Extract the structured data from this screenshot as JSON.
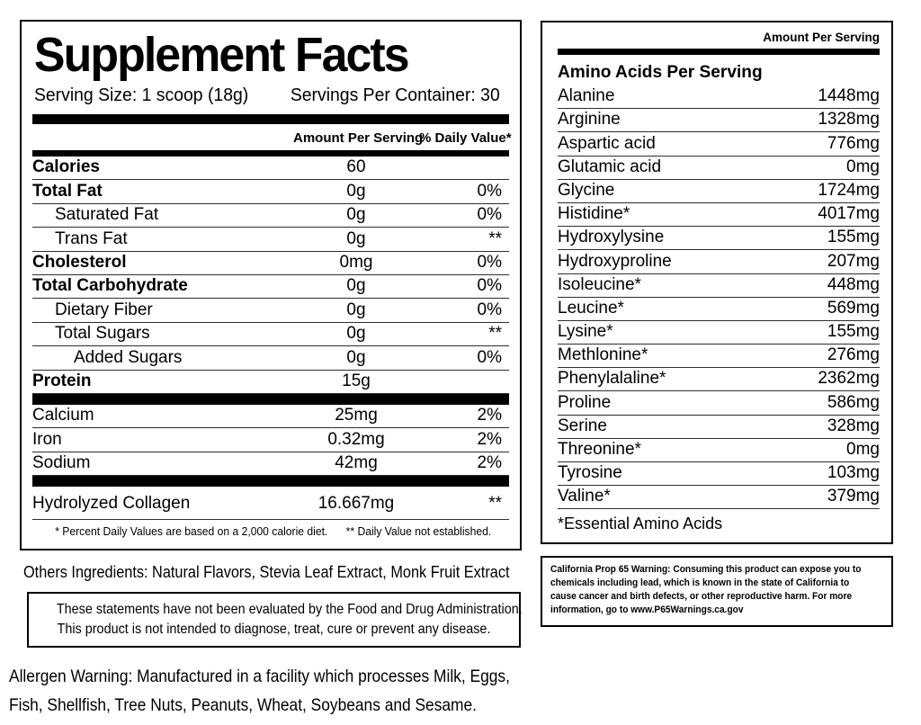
{
  "left_panel": {
    "title": "Supplement Facts",
    "serving_size": "Serving Size: 1 scoop (18g)",
    "servings_per_container": "Servings Per Container: 30",
    "col_amount": "Amount Per Serving",
    "col_dv": "% Daily Value*",
    "rows": [
      {
        "name": "Calories",
        "amount": "60",
        "dv": "",
        "cls": "bold"
      },
      {
        "name": "Total Fat",
        "amount": "0g",
        "dv": "0%",
        "cls": "bold"
      },
      {
        "name": "Saturated Fat",
        "amount": "0g",
        "dv": "0%",
        "cls": "indent1"
      },
      {
        "name": "Trans Fat",
        "amount": "0g",
        "dv": "**",
        "cls": "indent1"
      },
      {
        "name": "Cholesterol",
        "amount": "0mg",
        "dv": "0%",
        "cls": "bold"
      },
      {
        "name": "Total Carbohydrate",
        "amount": "0g",
        "dv": "0%",
        "cls": "bold"
      },
      {
        "name": "Dietary Fiber",
        "amount": "0g",
        "dv": "0%",
        "cls": "indent1"
      },
      {
        "name": "Total Sugars",
        "amount": "0g",
        "dv": "**",
        "cls": "indent1"
      },
      {
        "name": "Added Sugars",
        "amount": "0g",
        "dv": "0%",
        "cls": "indent2"
      },
      {
        "name": "Protein",
        "amount": "15g",
        "dv": "",
        "cls": "bold"
      }
    ],
    "minerals": [
      {
        "name": "Calcium",
        "amount": "25mg",
        "dv": "2%",
        "cls": "plain"
      },
      {
        "name": "Iron",
        "amount": "0.32mg",
        "dv": "2%",
        "cls": "plain"
      },
      {
        "name": "Sodium",
        "amount": "42mg",
        "dv": "2%",
        "cls": "plain"
      }
    ],
    "extra": [
      {
        "name": "Hydrolyzed Collagen",
        "amount": "16.667mg",
        "dv": "**",
        "cls": "plain"
      }
    ],
    "footnote_left": "* Percent Daily Values are based on a 2,000 calorie diet.",
    "footnote_right": "** Daily Value not established.",
    "other_ingredients": "Others Ingredients: Natural Flavors, Stevia Leaf Extract, Monk Fruit Extract",
    "fda_line1": "These statements have not been evaluated by the Food and Drug Administration.",
    "fda_line2": "This product is not intended to diagnose, treat, cure or prevent any disease.",
    "allergen_line1": "Allergen Warning: Manufactured in a facility which processes Milk, Eggs,",
    "allergen_line2": "Fish, Shellfish, Tree Nuts, Peanuts, Wheat, Soybeans and Sesame."
  },
  "right_panel": {
    "header": "Amount Per Serving",
    "section_title": "Amino Acids Per Serving",
    "rows": [
      {
        "name": "Alanine",
        "amount": "1448mg"
      },
      {
        "name": "Arginine",
        "amount": "1328mg"
      },
      {
        "name": "Aspartic acid",
        "amount": "776mg"
      },
      {
        "name": "Glutamic acid",
        "amount": "0mg"
      },
      {
        "name": "Glycine",
        "amount": "1724mg"
      },
      {
        "name": "Histidine*",
        "amount": "4017mg"
      },
      {
        "name": "Hydroxylysine",
        "amount": "155mg"
      },
      {
        "name": "Hydroxyproline",
        "amount": "207mg"
      },
      {
        "name": "Isoleucine*",
        "amount": "448mg"
      },
      {
        "name": "Leucine*",
        "amount": "569mg"
      },
      {
        "name": "Lysine*",
        "amount": "155mg"
      },
      {
        "name": "Methlonine*",
        "amount": "276mg"
      },
      {
        "name": "Phenylalaline*",
        "amount": "2362mg"
      },
      {
        "name": "Proline",
        "amount": "586mg"
      },
      {
        "name": "Serine",
        "amount": "328mg"
      },
      {
        "name": "Threonine*",
        "amount": "0mg"
      },
      {
        "name": "Tyrosine",
        "amount": "103mg"
      },
      {
        "name": "Valine*",
        "amount": "379mg"
      }
    ],
    "essential_note": "*Essential Amino Acids",
    "prop65": "California Prop 65 Warning: Consuming this product can expose you to chemicals including lead, which is known in the state of California to cause cancer and birth defects, or other reproductive harm. For more information, go to www.P65Warnings.ca.gov"
  },
  "colors": {
    "text": "#000000",
    "background": "#ffffff",
    "bar": "#000000",
    "hairline": "#2e2e2e"
  }
}
